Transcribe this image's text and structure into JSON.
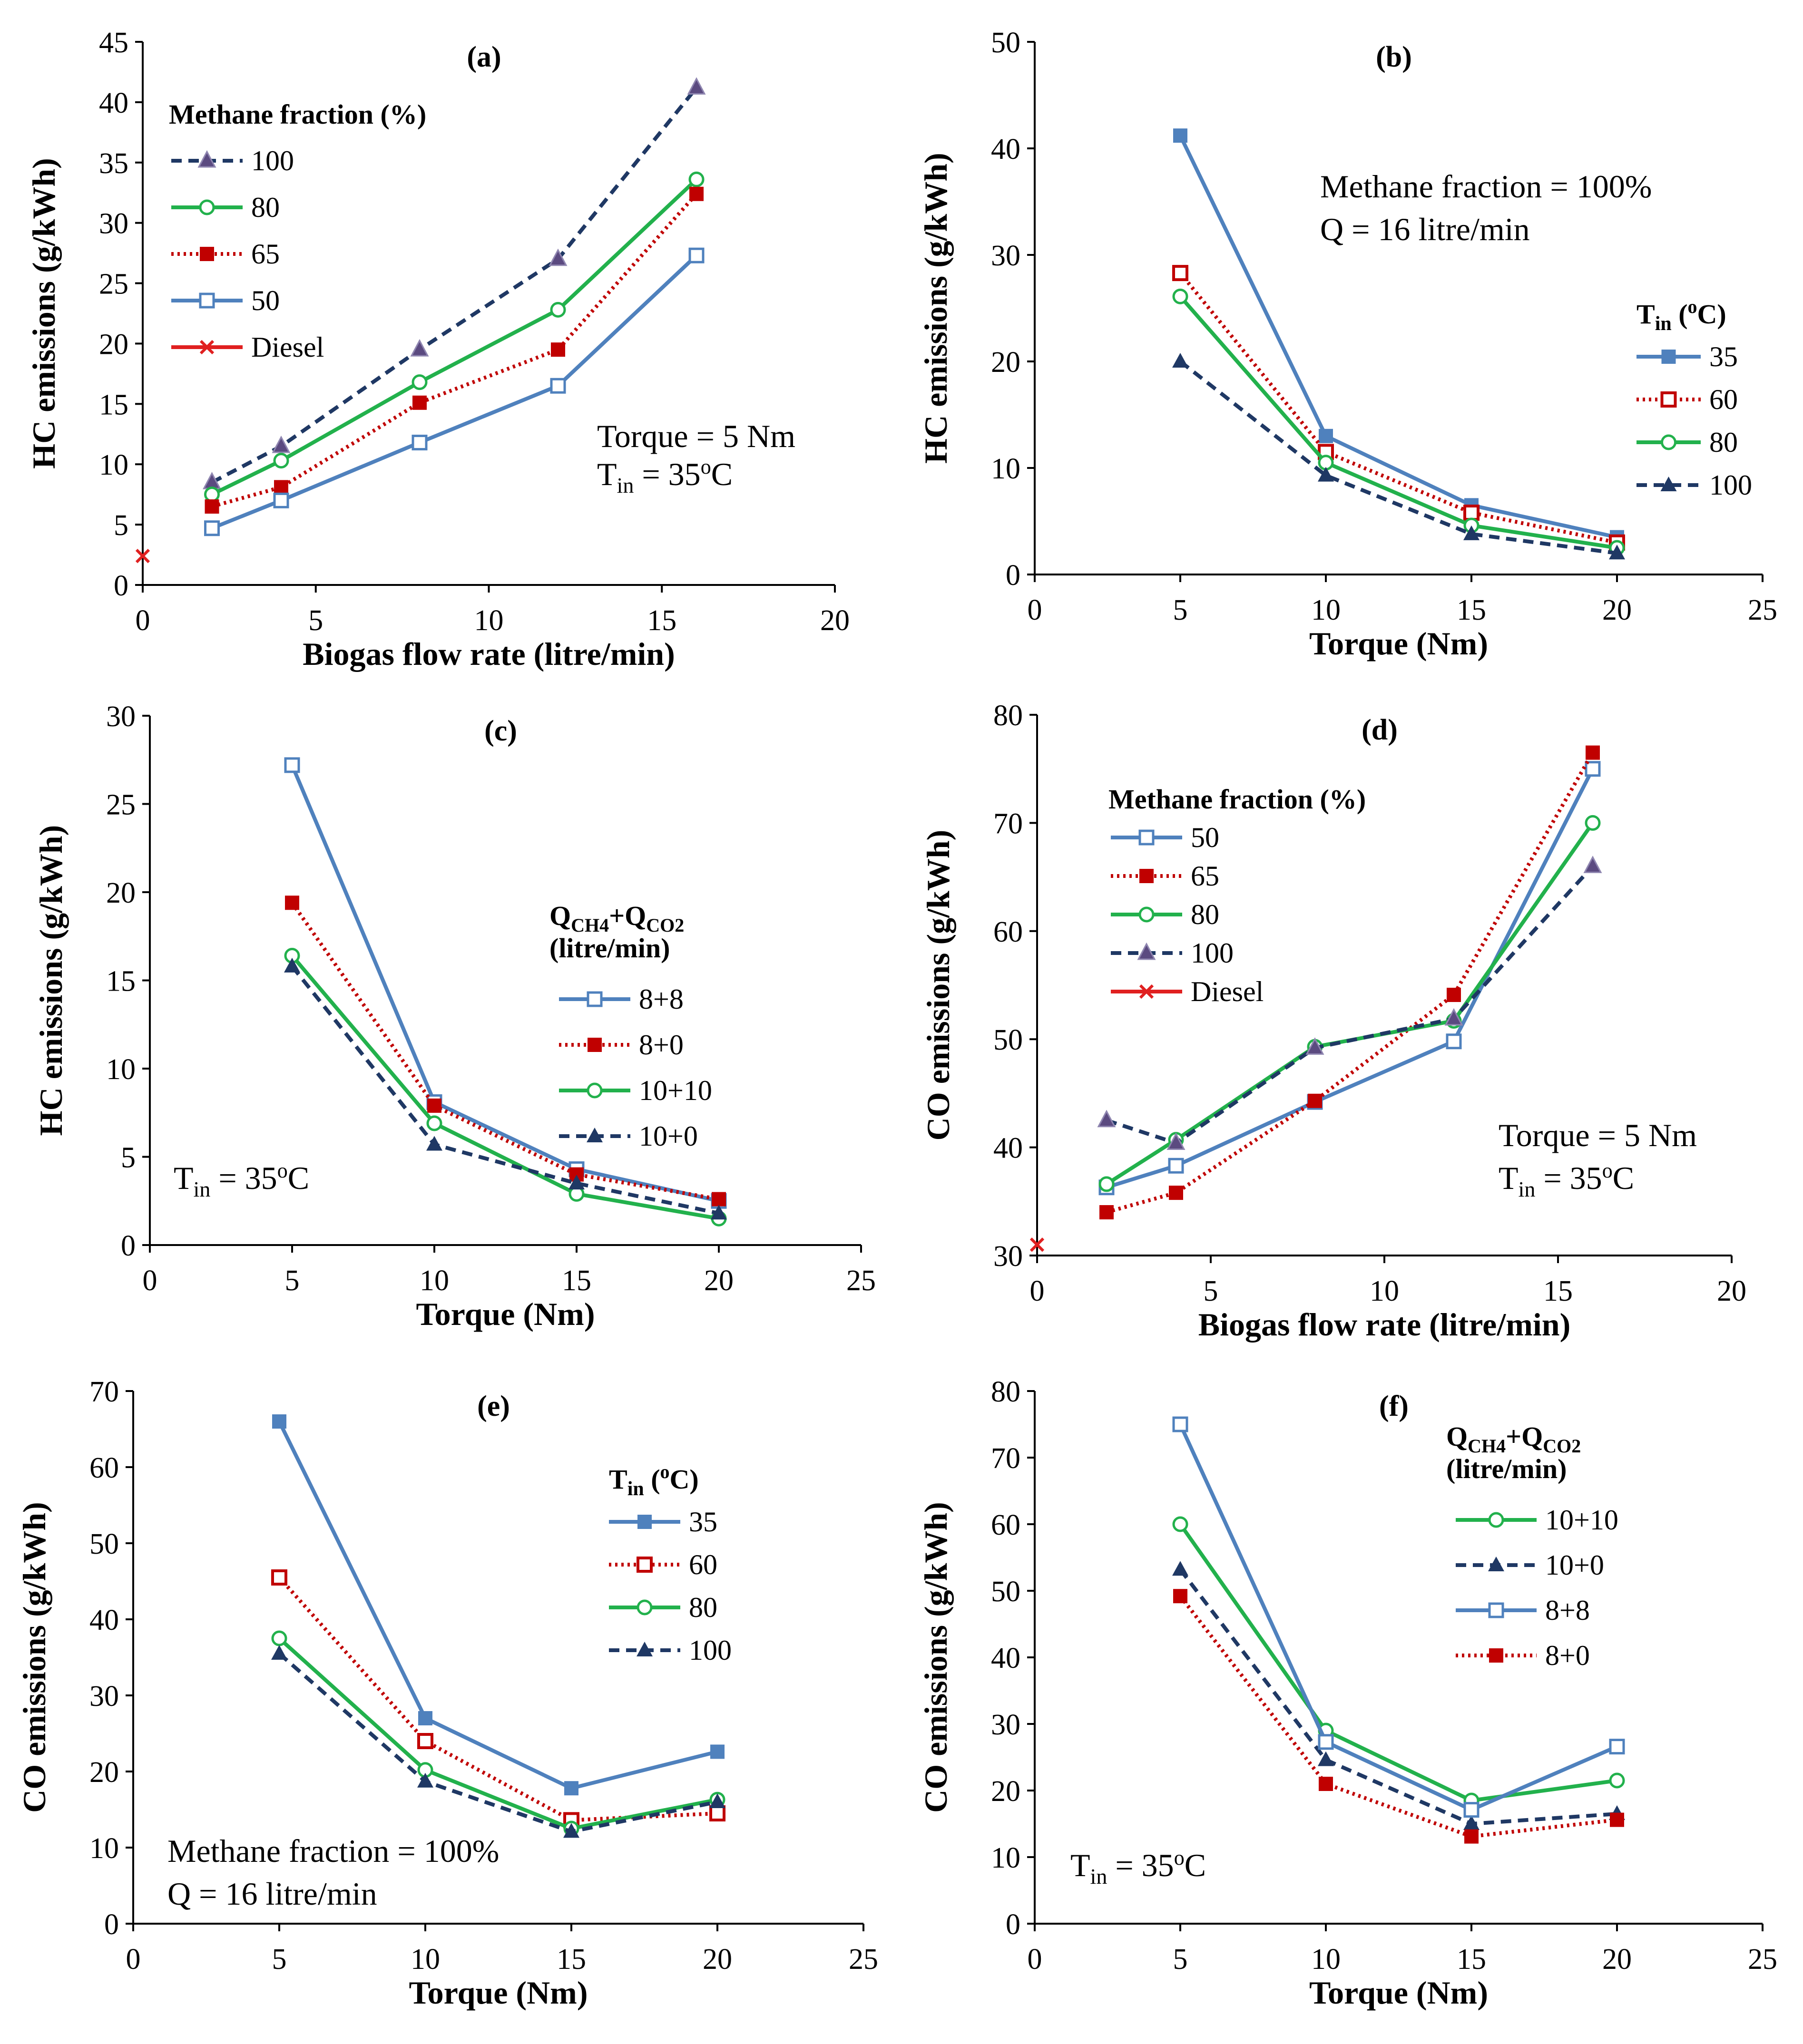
{
  "colors": {
    "blue": "#4f81bd",
    "red": "#c00000",
    "green": "#22b14c",
    "navy": "#1f3864",
    "star": "#5b4a80",
    "diesel": "#e02020"
  },
  "chart_data": [
    {
      "id": "a",
      "type": "line",
      "title": "(a)",
      "xlabel": "Biogas flow rate (litre/min)",
      "ylabel": "HC emissions (g/kWh)",
      "xlim": [
        0,
        20
      ],
      "ylim": [
        0,
        45
      ],
      "xticks": [
        0,
        5,
        10,
        15,
        20
      ],
      "yticks": [
        0,
        5,
        10,
        15,
        20,
        25,
        30,
        35,
        40,
        45
      ],
      "legend_title": "Methane fraction (%)",
      "annotation": "Torque = 5 Nm",
      "annotation2_base": "T",
      "annotation2_sub": "in",
      "annotation2_rest": " = 35",
      "annotation2_sup": "o",
      "annotation2_unit": "C",
      "series": [
        {
          "name": "100",
          "style": "star",
          "x": [
            2,
            4,
            8,
            12,
            16
          ],
          "values": [
            8.5,
            11.5,
            19.5,
            27,
            41.2
          ]
        },
        {
          "name": "80",
          "style": "green",
          "x": [
            2,
            4,
            8,
            12,
            16
          ],
          "values": [
            7.5,
            10.3,
            16.8,
            22.8,
            33.6
          ]
        },
        {
          "name": "65",
          "style": "red",
          "x": [
            2,
            4,
            8,
            12,
            16
          ],
          "values": [
            6.5,
            8.1,
            15.1,
            19.5,
            32.4
          ]
        },
        {
          "name": "50",
          "style": "blue",
          "x": [
            2,
            4,
            8,
            12,
            16
          ],
          "values": [
            4.7,
            7,
            11.8,
            16.5,
            27.3
          ]
        },
        {
          "name": "Diesel",
          "style": "diesel",
          "x": [
            0
          ],
          "values": [
            2.4
          ]
        }
      ]
    },
    {
      "id": "b",
      "type": "line",
      "title": "(b)",
      "xlabel": "Torque (Nm)",
      "ylabel": "HC emissions (g/kWh)",
      "xlim": [
        0,
        25
      ],
      "ylim": [
        0,
        50
      ],
      "xticks": [
        0,
        5,
        10,
        15,
        20,
        25
      ],
      "yticks": [
        0,
        10,
        20,
        30,
        40,
        50
      ],
      "legend_title_base": "T",
      "legend_title_sub": "in",
      "legend_title_rest": " (",
      "legend_title_sup": "o",
      "legend_title_unit": "C)",
      "annotation": "Methane fraction = 100%",
      "annotation2": "Q = 16 litre/min",
      "series": [
        {
          "name": "35",
          "style": "blue-solid-sq",
          "x": [
            5,
            10,
            15,
            20
          ],
          "values": [
            41.2,
            13,
            6.5,
            3.5
          ]
        },
        {
          "name": "60",
          "style": "red-open-sq",
          "x": [
            5,
            10,
            15,
            20
          ],
          "values": [
            28.3,
            11.5,
            5.8,
            3
          ]
        },
        {
          "name": "80",
          "style": "green",
          "x": [
            5,
            10,
            15,
            20
          ],
          "values": [
            26.1,
            10.5,
            4.6,
            2.5
          ]
        },
        {
          "name": "100",
          "style": "navy-tri",
          "x": [
            5,
            10,
            15,
            20
          ],
          "values": [
            20,
            9.3,
            3.8,
            2
          ]
        }
      ]
    },
    {
      "id": "c",
      "type": "line",
      "title": "(c)",
      "xlabel": "Torque (Nm)",
      "ylabel": "HC emissions (g/kWh)",
      "xlim": [
        0,
        25
      ],
      "ylim": [
        0,
        30
      ],
      "xticks": [
        0,
        5,
        10,
        15,
        20,
        25
      ],
      "yticks": [
        0,
        5,
        10,
        15,
        20,
        25,
        30
      ],
      "legend_title": "Q",
      "legend_title_sub1": "CH4",
      "legend_title_mid": "+Q",
      "legend_title_sub2": "CO2",
      "legend_title2": "(litre/min)",
      "annotation_base": "T",
      "annotation_sub": "in",
      "annotation_rest": " = 35",
      "annotation_sup": "o",
      "annotation_unit": "C",
      "series": [
        {
          "name": "8+8",
          "style": "blue",
          "x": [
            5,
            10,
            15,
            20
          ],
          "values": [
            27.2,
            8.1,
            4.3,
            2.5
          ]
        },
        {
          "name": "8+0",
          "style": "red",
          "x": [
            5,
            10,
            15,
            20
          ],
          "values": [
            19.4,
            7.9,
            4,
            2.6
          ]
        },
        {
          "name": "10+10",
          "style": "green",
          "x": [
            5,
            10,
            15,
            20
          ],
          "values": [
            16.4,
            6.9,
            2.9,
            1.5
          ]
        },
        {
          "name": "10+0",
          "style": "navy-tri",
          "x": [
            5,
            10,
            15,
            20
          ],
          "values": [
            15.8,
            5.7,
            3.5,
            1.8
          ]
        }
      ]
    },
    {
      "id": "d",
      "type": "line",
      "title": "(d)",
      "xlabel": "Biogas flow rate (litre/min)",
      "ylabel": "CO emissions (g/kWh)",
      "xlim": [
        0,
        20
      ],
      "ylim": [
        30,
        80
      ],
      "xticks": [
        0,
        5,
        10,
        15,
        20
      ],
      "yticks": [
        30,
        40,
        50,
        60,
        70,
        80
      ],
      "legend_title": "Methane fraction (%)",
      "annotation": "Torque = 5 Nm",
      "annotation2_base": "T",
      "annotation2_sub": "in",
      "annotation2_rest": " = 35",
      "annotation2_sup": "o",
      "annotation2_unit": "C",
      "series": [
        {
          "name": "50",
          "style": "blue",
          "x": [
            2,
            4,
            8,
            12,
            16
          ],
          "values": [
            36.3,
            38.3,
            44.2,
            49.8,
            75
          ]
        },
        {
          "name": "65",
          "style": "red",
          "x": [
            2,
            4,
            8,
            12,
            16
          ],
          "values": [
            34,
            35.8,
            44.3,
            54.1,
            76.5
          ]
        },
        {
          "name": "80",
          "style": "green",
          "x": [
            2,
            4,
            8,
            12,
            16
          ],
          "values": [
            36.6,
            40.7,
            49.3,
            51.7,
            70
          ]
        },
        {
          "name": "100",
          "style": "star",
          "x": [
            2,
            4,
            8,
            12,
            16
          ],
          "values": [
            42.5,
            40.4,
            49.2,
            51.9,
            66
          ]
        },
        {
          "name": "Diesel",
          "style": "diesel",
          "x": [
            0
          ],
          "values": [
            31
          ]
        }
      ]
    },
    {
      "id": "e",
      "type": "line",
      "title": "(e)",
      "xlabel": "Torque (Nm)",
      "ylabel": "CO emissions (g/kWh)",
      "xlim": [
        0,
        25
      ],
      "ylim": [
        0,
        70
      ],
      "xticks": [
        0,
        5,
        10,
        15,
        20,
        25
      ],
      "yticks": [
        0,
        10,
        20,
        30,
        40,
        50,
        60,
        70
      ],
      "legend_title_base": "T",
      "legend_title_sub": "in",
      "legend_title_rest": " (",
      "legend_title_sup": "o",
      "legend_title_unit": "C)",
      "annotation": "Methane fraction = 100%",
      "annotation2": "Q = 16 litre/min",
      "series": [
        {
          "name": "35",
          "style": "blue-solid-sq",
          "x": [
            5,
            10,
            15,
            20
          ],
          "values": [
            66,
            27,
            17.8,
            22.6
          ]
        },
        {
          "name": "60",
          "style": "red-open-sq",
          "x": [
            5,
            10,
            15,
            20
          ],
          "values": [
            45.5,
            24,
            13.6,
            14.5
          ]
        },
        {
          "name": "80",
          "style": "green",
          "x": [
            5,
            10,
            15,
            20
          ],
          "values": [
            37.5,
            20.2,
            12.5,
            16.3
          ]
        },
        {
          "name": "100",
          "style": "navy-tri",
          "x": [
            5,
            10,
            15,
            20
          ],
          "values": [
            35.5,
            18.7,
            12.1,
            16
          ]
        }
      ]
    },
    {
      "id": "f",
      "type": "line",
      "title": "(f)",
      "xlabel": "Torque (Nm)",
      "ylabel": "CO emissions (g/kWh)",
      "xlim": [
        0,
        25
      ],
      "ylim": [
        0,
        80
      ],
      "xticks": [
        0,
        5,
        10,
        15,
        20,
        25
      ],
      "yticks": [
        0,
        10,
        20,
        30,
        40,
        50,
        60,
        70,
        80
      ],
      "legend_title": "Q",
      "legend_title_sub1": "CH4",
      "legend_title_mid": "+Q",
      "legend_title_sub2": "CO2",
      "legend_title2": "(litre/min)",
      "annotation_base": "T",
      "annotation_sub": "in",
      "annotation_rest": " = 35",
      "annotation_sup": "o",
      "annotation_unit": "C",
      "series": [
        {
          "name": "10+10",
          "style": "green",
          "x": [
            5,
            10,
            15,
            20
          ],
          "values": [
            60,
            29,
            18.5,
            21.5
          ]
        },
        {
          "name": "10+0",
          "style": "navy-tri",
          "x": [
            5,
            10,
            15,
            20
          ],
          "values": [
            53.2,
            24.6,
            15,
            16.5
          ]
        },
        {
          "name": "8+8",
          "style": "blue",
          "x": [
            5,
            10,
            15,
            20
          ],
          "values": [
            75,
            27.3,
            17.1,
            26.6
          ]
        },
        {
          "name": "8+0",
          "style": "red",
          "x": [
            5,
            10,
            15,
            20
          ],
          "values": [
            49.2,
            21,
            13.1,
            15.6
          ]
        }
      ]
    }
  ]
}
